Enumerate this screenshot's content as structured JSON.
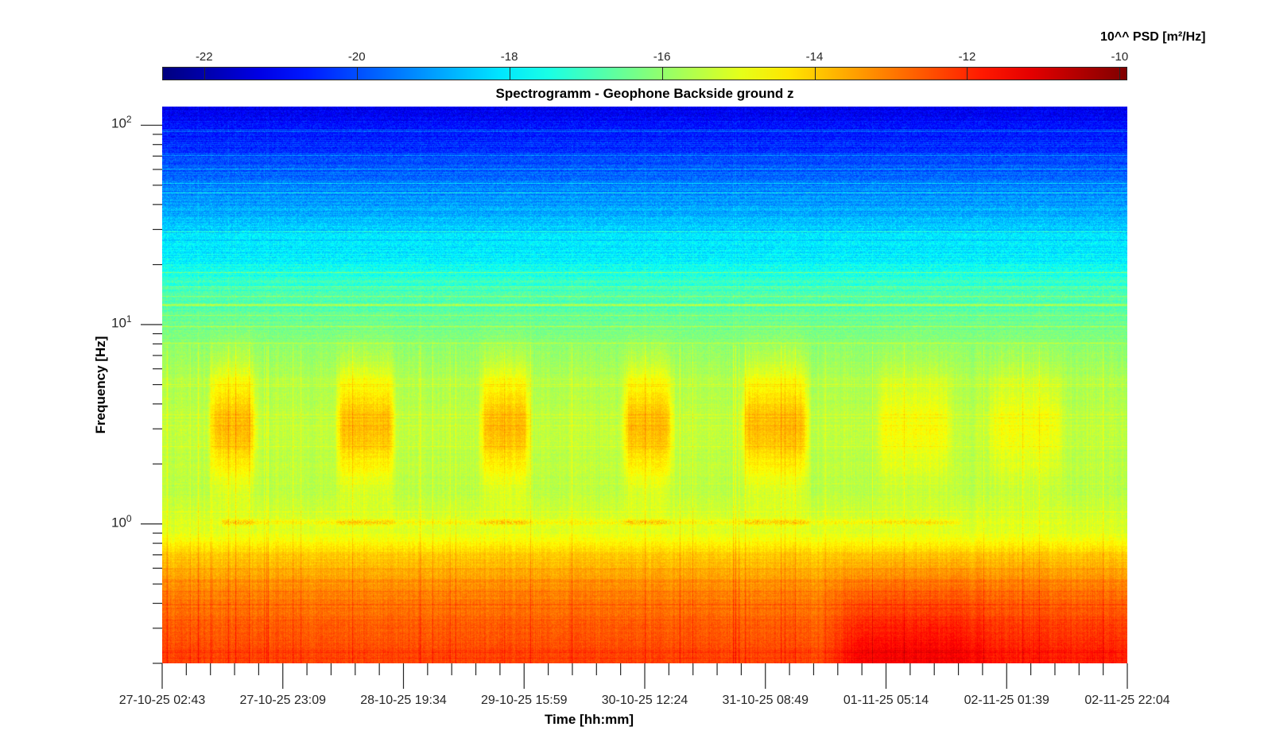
{
  "chart_data": {
    "type": "heatmap",
    "title": "Spectrogramm - Geophone Backside ground z",
    "xlabel": "Time [hh:mm]",
    "ylabel": "Frequency [Hz]",
    "colorbar": {
      "label": "10^^ PSD [m²/Hz]",
      "ticks": [
        -22,
        -20,
        -18,
        -16,
        -14,
        -12,
        -10
      ],
      "tick_labels": [
        "-22",
        "-20",
        "-18",
        "-16",
        "-14",
        "-12",
        "-10"
      ],
      "clim": [
        -22.55,
        -9.9
      ],
      "colormap": "jet"
    },
    "x_tick_labels": [
      "27-10-25 02:43",
      "27-10-25 23:09",
      "28-10-25 19:34",
      "29-10-25 15:59",
      "30-10-25 12:24",
      "31-10-25 08:49",
      "01-11-25 05:14",
      "02-11-25 01:39",
      "02-11-25 22:04"
    ],
    "x_range_hours": [
      0,
      163.35
    ],
    "x_minor_per_major": 5,
    "y_scale": "log",
    "y_range_hz": [
      0.2,
      124
    ],
    "y_tick_values": [
      1,
      10,
      100
    ],
    "y_tick_labels": [
      {
        "base": "10",
        "exp": "0"
      },
      {
        "base": "10",
        "exp": "1"
      },
      {
        "base": "10",
        "exp": "2"
      }
    ],
    "baseline_log10_psd": {
      "freq_hz": [
        0.2,
        0.3,
        0.45,
        0.7,
        0.9,
        1.5,
        3,
        5,
        7,
        10,
        15,
        20,
        30,
        50,
        80,
        124
      ],
      "value": [
        -12.3,
        -12.6,
        -13.1,
        -14.0,
        -15.0,
        -15.5,
        -15.4,
        -15.6,
        -15.9,
        -16.4,
        -17.0,
        -17.7,
        -18.4,
        -19.4,
        -20.4,
        -21.3
      ]
    },
    "activity_periods_hours": [
      [
        7.5,
        16.3
      ],
      [
        29,
        39.8
      ],
      [
        53.3,
        62.7
      ],
      [
        77.5,
        86.9
      ],
      [
        97.6,
        109.8
      ],
      [
        120.5,
        134,
        0.45
      ],
      [
        139.3,
        152.8,
        0.4
      ]
    ],
    "low_freq_enhancement": {
      "start_hours": 112,
      "peak_hours": [
        118,
        134
      ],
      "delta_log10_psd": 0.9
    }
  }
}
